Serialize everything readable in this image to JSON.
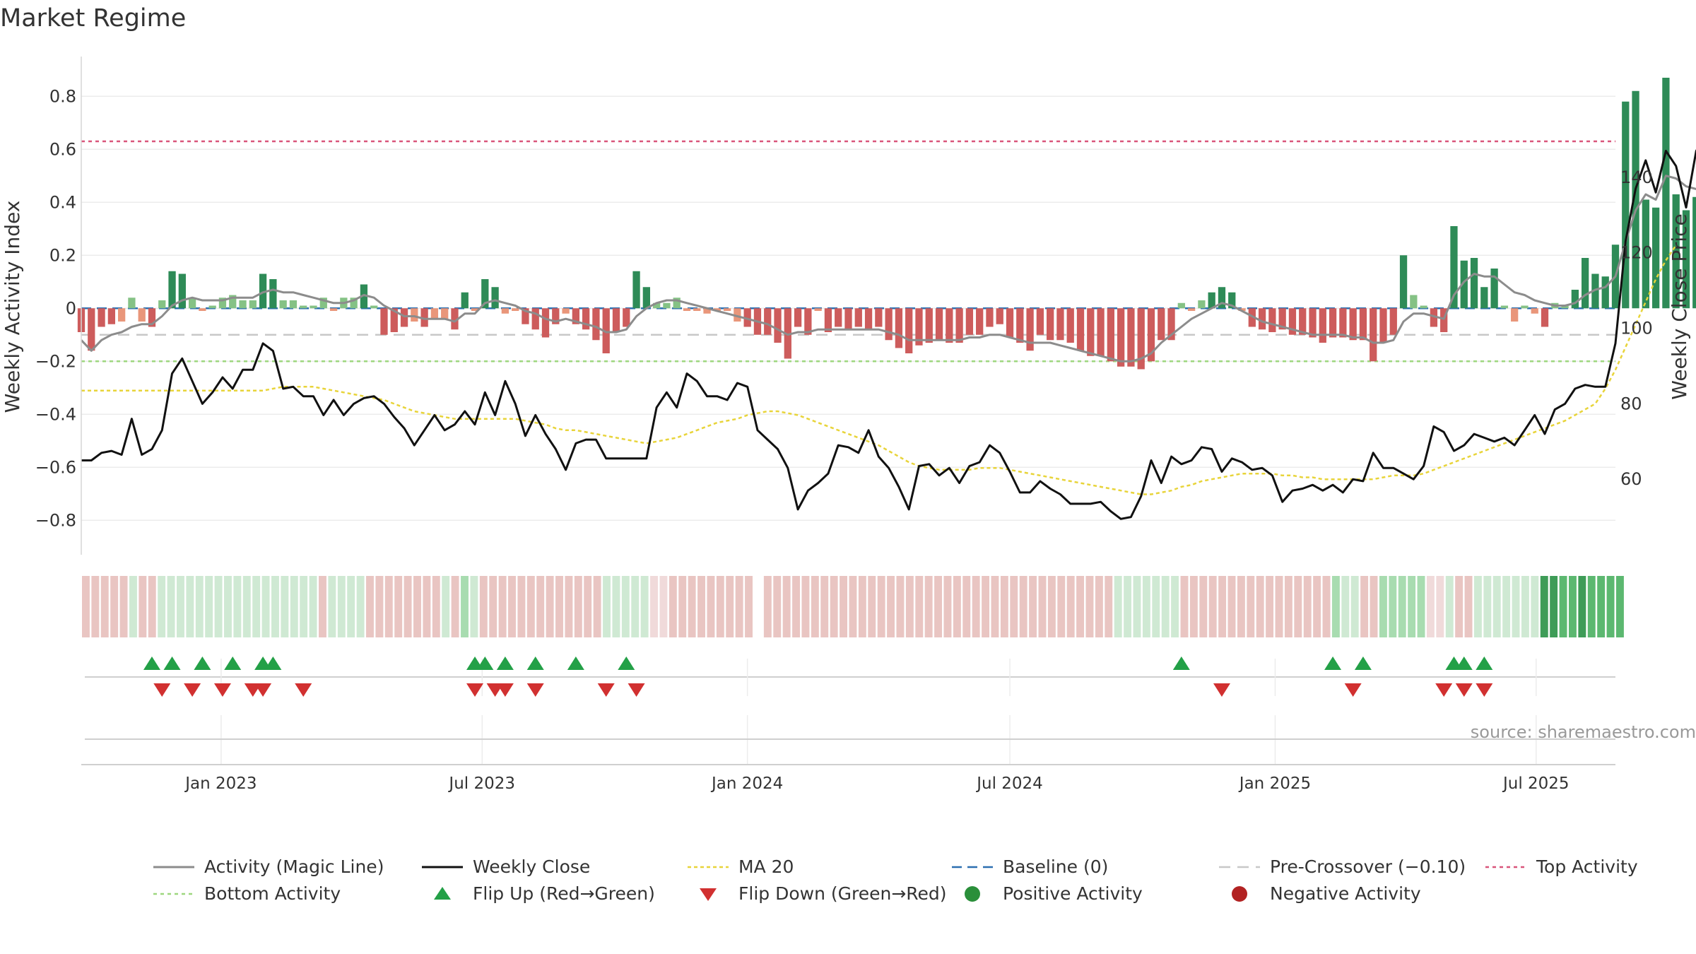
{
  "title": "Market Regime",
  "source": "source: sharemaestro.com",
  "colors": {
    "magic_line": "#8c8c8c",
    "close": "#111111",
    "ma": "#e8d43a",
    "baseline": "#2c6fb0",
    "pre_crossover": "#c8c8c8",
    "top": "#d9557a",
    "bottom": "#9ed77f",
    "pos_strong": "#2e8b57",
    "pos_light": "#85c285",
    "neg_strong": "#cd5c5c",
    "neg_light": "#e9967a",
    "flip_up": "#23a047",
    "flip_down": "#d13030",
    "pos_dot": "#2a8f3a",
    "neg_dot": "#b22222"
  },
  "chart_data": {
    "type": "bar+line",
    "ylabel_left": "Weekly Activity Index",
    "ylabel_right": "Weekly Close Price",
    "ylim_left": [
      -0.93,
      0.95
    ],
    "ylim_right": [
      40,
      172
    ],
    "yticks_left": [
      "0.8",
      "0.6",
      "0.4",
      "0.2",
      "0",
      "−0.2",
      "−0.4",
      "−0.6",
      "−0.8"
    ],
    "yticks_right": [
      "140",
      "120",
      "100",
      "80",
      "60"
    ],
    "xticks": [
      "Jan 2023",
      "Jul 2023",
      "Jan 2024",
      "Jul 2024",
      "Jan 2025",
      "Jul 2025"
    ],
    "x_start": "2022-09-26",
    "x_end": "2025-08-25",
    "reference_lines": {
      "top": 0.63,
      "bottom": -0.2,
      "pre_crossover": -0.1,
      "baseline": 0
    },
    "activity": [
      -0.09,
      -0.16,
      -0.07,
      -0.06,
      -0.05,
      0.04,
      -0.05,
      -0.07,
      0.03,
      0.14,
      0.13,
      0.04,
      -0.01,
      0.01,
      0.04,
      0.05,
      0.03,
      0.03,
      0.13,
      0.11,
      0.03,
      0.03,
      0.01,
      0.01,
      0.04,
      -0.01,
      0.04,
      0.04,
      0.09,
      0.01,
      -0.1,
      -0.09,
      -0.07,
      -0.05,
      -0.07,
      -0.04,
      -0.04,
      -0.08,
      0.06,
      -0.01,
      0.11,
      0.08,
      -0.02,
      -0.01,
      -0.06,
      -0.08,
      -0.11,
      -0.06,
      -0.02,
      -0.06,
      -0.08,
      -0.12,
      -0.17,
      -0.09,
      -0.07,
      0.14,
      0.08,
      0.02,
      0.02,
      0.04,
      -0.01,
      -0.01,
      -0.02,
      -0.01,
      -0.01,
      -0.05,
      -0.07,
      -0.1,
      -0.1,
      -0.13,
      -0.19,
      -0.07,
      -0.1,
      -0.01,
      -0.09,
      -0.07,
      -0.08,
      -0.07,
      -0.08,
      -0.07,
      -0.12,
      -0.15,
      -0.17,
      -0.14,
      -0.13,
      -0.12,
      -0.13,
      -0.13,
      -0.1,
      -0.1,
      -0.07,
      -0.06,
      -0.11,
      -0.13,
      -0.16,
      -0.1,
      -0.12,
      -0.12,
      -0.13,
      -0.16,
      -0.18,
      -0.18,
      -0.2,
      -0.22,
      -0.22,
      -0.23,
      -0.2,
      -0.12,
      -0.12,
      0.02,
      -0.01,
      0.03,
      0.06,
      0.08,
      0.06,
      -0.01,
      -0.07,
      -0.08,
      -0.09,
      -0.08,
      -0.1,
      -0.1,
      -0.11,
      -0.13,
      -0.11,
      -0.11,
      -0.12,
      -0.12,
      -0.2,
      -0.13,
      -0.1,
      0.2,
      0.05,
      0.01,
      -0.07,
      -0.09,
      0.31,
      0.18,
      0.19,
      0.08,
      0.15,
      0.01,
      -0.05,
      0.01,
      -0.02,
      -0.07,
      0.02,
      0.01,
      0.07,
      0.19,
      0.13,
      0.12,
      0.24,
      0.78,
      0.82,
      0.41,
      0.38,
      0.87,
      0.43,
      0.37,
      0.42,
      0.45
    ],
    "magic_line": [
      -0.12,
      -0.16,
      -0.12,
      -0.1,
      -0.09,
      -0.07,
      -0.06,
      -0.06,
      -0.03,
      0.01,
      0.03,
      0.04,
      0.03,
      0.03,
      0.03,
      0.04,
      0.04,
      0.04,
      0.06,
      0.07,
      0.06,
      0.06,
      0.05,
      0.04,
      0.03,
      0.02,
      0.02,
      0.03,
      0.05,
      0.04,
      0.01,
      -0.01,
      -0.03,
      -0.03,
      -0.04,
      -0.04,
      -0.04,
      -0.05,
      -0.02,
      -0.02,
      0.02,
      0.03,
      0.02,
      0.01,
      -0.01,
      -0.02,
      -0.04,
      -0.05,
      -0.04,
      -0.05,
      -0.06,
      -0.07,
      -0.09,
      -0.09,
      -0.08,
      -0.03,
      0.0,
      0.02,
      0.03,
      0.03,
      0.02,
      0.01,
      0.0,
      -0.01,
      -0.02,
      -0.03,
      -0.04,
      -0.05,
      -0.06,
      -0.08,
      -0.1,
      -0.09,
      -0.09,
      -0.08,
      -0.08,
      -0.08,
      -0.08,
      -0.08,
      -0.08,
      -0.08,
      -0.09,
      -0.1,
      -0.12,
      -0.12,
      -0.12,
      -0.12,
      -0.12,
      -0.12,
      -0.11,
      -0.11,
      -0.1,
      -0.1,
      -0.11,
      -0.12,
      -0.13,
      -0.13,
      -0.13,
      -0.14,
      -0.15,
      -0.16,
      -0.17,
      -0.18,
      -0.19,
      -0.2,
      -0.2,
      -0.19,
      -0.17,
      -0.13,
      -0.1,
      -0.07,
      -0.04,
      -0.02,
      0.0,
      0.02,
      0.01,
      -0.01,
      -0.03,
      -0.05,
      -0.06,
      -0.07,
      -0.08,
      -0.09,
      -0.1,
      -0.1,
      -0.1,
      -0.1,
      -0.11,
      -0.11,
      -0.13,
      -0.13,
      -0.12,
      -0.05,
      -0.02,
      -0.02,
      -0.03,
      -0.04,
      0.05,
      0.1,
      0.13,
      0.12,
      0.12,
      0.09,
      0.06,
      0.05,
      0.03,
      0.02,
      0.01,
      0.01,
      0.02,
      0.05,
      0.07,
      0.08,
      0.12,
      0.25,
      0.37,
      0.43,
      0.41,
      0.5,
      0.49,
      0.46,
      0.45,
      0.45
    ],
    "weekly_close": [
      65,
      65,
      67,
      67.5,
      66.5,
      76,
      66.5,
      68,
      73,
      88,
      92,
      86,
      80,
      83,
      87,
      84,
      89,
      89,
      96,
      94,
      84,
      84.5,
      82,
      82,
      77,
      81,
      77,
      80,
      81.5,
      82,
      80,
      76.5,
      73.5,
      69,
      73,
      77,
      73,
      74.5,
      78,
      74.5,
      83,
      77,
      86,
      80,
      71.5,
      77,
      72,
      68,
      62.5,
      69.5,
      70.5,
      70.5,
      65.5,
      65.5,
      65.5,
      65.5,
      65.5,
      79,
      83,
      79,
      88,
      86,
      82,
      82,
      81,
      85.5,
      84.5,
      73,
      70.5,
      68,
      63,
      52,
      57,
      59,
      61.5,
      69,
      68.5,
      67,
      73,
      66,
      63,
      58,
      52,
      63.5,
      64,
      61,
      63,
      59,
      63.5,
      64.5,
      69,
      67,
      62,
      56.5,
      56.5,
      59.5,
      57.5,
      56,
      53.5,
      53.5,
      53.5,
      54,
      51.5,
      49.5,
      50,
      55.5,
      65,
      59,
      66,
      64,
      65,
      68.5,
      68,
      62,
      65.5,
      64.5,
      62.5,
      63,
      61,
      54,
      57,
      57.5,
      58.5,
      57,
      58.5,
      56.5,
      60,
      59.5,
      67,
      63,
      63,
      61.5,
      60,
      63.5,
      74,
      72.5,
      67.5,
      69,
      72,
      71,
      70,
      71,
      69,
      73,
      77,
      72,
      78.5,
      80,
      84,
      85,
      84.5,
      84.5,
      96,
      123,
      137,
      144.5,
      136,
      147,
      143,
      132,
      147,
      151
    ],
    "ma20": [
      83.5,
      83.5,
      83.5,
      83.5,
      83.5,
      83.5,
      83.5,
      83.5,
      83.5,
      83.5,
      83.5,
      83.5,
      83.5,
      83.5,
      83.5,
      83.5,
      83.5,
      83.5,
      83.5,
      84,
      84.5,
      84.5,
      84.5,
      84.5,
      84,
      83.5,
      83,
      82.5,
      82,
      81.5,
      81,
      80,
      79,
      78,
      77.5,
      77,
      76.5,
      76,
      76,
      76,
      76,
      76,
      76,
      76,
      75.5,
      75,
      74.5,
      73.5,
      73,
      73,
      72.5,
      72,
      71.5,
      71,
      70.5,
      70,
      69.5,
      70,
      70.5,
      71,
      72,
      73,
      74,
      75,
      75.5,
      76,
      77,
      77.5,
      78,
      78,
      77.5,
      77,
      76,
      75,
      74,
      73,
      72,
      71,
      70,
      69,
      67.5,
      66,
      64.5,
      63.5,
      63,
      62.5,
      62.5,
      62.5,
      62.5,
      63,
      63,
      63,
      62.5,
      62,
      61.5,
      61,
      60.5,
      60,
      59.5,
      59,
      58.5,
      58,
      57.5,
      57,
      56.5,
      56,
      56,
      56.5,
      57,
      58,
      58.5,
      59.5,
      60,
      60.5,
      61,
      61.5,
      61.5,
      61.5,
      61.5,
      61,
      61,
      60.5,
      60.5,
      60,
      60,
      60,
      60,
      60,
      60,
      60.5,
      61,
      61,
      61,
      61.5,
      62.5,
      63.5,
      64.5,
      65.5,
      66.5,
      67.5,
      68.5,
      69.5,
      70.5,
      71.5,
      72.5,
      73.5,
      74.5,
      75.5,
      77,
      78.5,
      80,
      84,
      89,
      95,
      101,
      107,
      113,
      118,
      122
    ],
    "regime_strip": [
      2,
      2,
      2,
      2,
      2,
      3,
      2,
      2,
      3,
      3,
      3,
      3,
      3,
      3,
      3,
      3,
      3,
      3,
      3,
      3,
      3,
      3,
      3,
      3,
      3,
      2,
      3,
      3,
      3,
      3,
      2,
      2,
      2,
      2,
      2,
      2,
      2,
      2,
      3,
      2,
      4,
      3,
      2,
      2,
      2,
      2,
      2,
      2,
      2,
      2,
      2,
      2,
      2,
      2,
      2,
      3,
      3,
      3,
      3,
      3,
      1,
      1,
      2,
      2,
      2,
      2,
      2,
      2,
      2,
      2,
      2,
      0,
      2,
      2,
      2,
      2,
      2,
      2,
      2,
      2,
      2,
      2,
      2,
      2,
      2,
      2,
      2,
      2,
      2,
      2,
      2,
      2,
      2,
      2,
      2,
      2,
      2,
      2,
      2,
      2,
      2,
      2,
      2,
      2,
      2,
      2,
      2,
      2,
      2,
      3,
      3,
      3,
      3,
      3,
      3,
      3,
      2,
      2,
      2,
      2,
      2,
      2,
      2,
      2,
      2,
      2,
      2,
      2,
      2,
      2,
      2,
      2,
      4,
      3,
      3,
      2,
      2,
      4,
      4,
      4,
      4,
      4,
      1,
      1,
      3,
      2,
      2,
      3,
      3,
      3,
      3,
      3,
      3,
      3,
      6,
      6,
      5,
      5,
      6,
      5,
      5,
      5,
      5
    ],
    "flip_up_dates": [
      "2022-11-14",
      "2022-11-28",
      "2022-12-19",
      "2023-01-09",
      "2023-01-30",
      "2023-02-06",
      "2023-06-26",
      "2023-07-03",
      "2023-07-17",
      "2023-08-07",
      "2023-09-04",
      "2023-10-09",
      "2024-10-28",
      "2025-02-10",
      "2025-03-03",
      "2025-05-05",
      "2025-05-12",
      "2025-05-26"
    ],
    "flip_down_dates": [
      "2022-11-21",
      "2022-12-12",
      "2023-01-02",
      "2023-01-23",
      "2023-01-30",
      "2023-02-27",
      "2023-06-26",
      "2023-07-10",
      "2023-07-17",
      "2023-08-07",
      "2023-09-25",
      "2023-10-16",
      "2024-11-25",
      "2025-02-24",
      "2025-04-28",
      "2025-05-12",
      "2025-05-26"
    ]
  },
  "legend": [
    {
      "label": "Activity (Magic Line)",
      "key": "line-gray"
    },
    {
      "label": "Weekly Close",
      "key": "line-black"
    },
    {
      "label": "MA 20",
      "key": "line-ma"
    },
    {
      "label": "Baseline (0)",
      "key": "line-base"
    },
    {
      "label": "Pre-Crossover (−0.10)",
      "key": "line-pre"
    },
    {
      "label": "Top Activity",
      "key": "line-top"
    },
    {
      "label": "Bottom Activity",
      "key": "line-bottom"
    },
    {
      "label": "Flip Up (Red→Green)",
      "key": "tri-up"
    },
    {
      "label": "Flip Down (Green→Red)",
      "key": "tri-down"
    },
    {
      "label": "Positive Activity",
      "key": "dot-pos"
    },
    {
      "label": "Negative Activity",
      "key": "dot-neg"
    }
  ]
}
